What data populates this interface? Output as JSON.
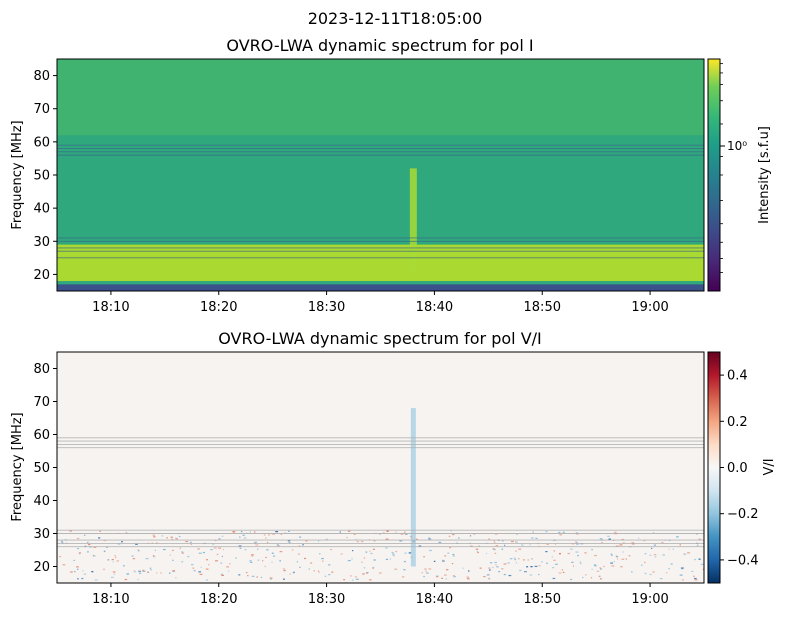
{
  "figure": {
    "suptitle": "2023-12-11T18:05:00"
  },
  "chart_data": [
    {
      "type": "heatmap",
      "title": "OVRO-LWA dynamic spectrum for pol I",
      "xlabel": "",
      "ylabel": "Frequency [MHz]",
      "x_tick_labels": [
        "18:10",
        "18:20",
        "18:30",
        "18:40",
        "18:50",
        "19:00"
      ],
      "x_range": [
        "18:05",
        "19:05"
      ],
      "y_ticks": [
        20,
        30,
        40,
        50,
        60,
        70,
        80
      ],
      "ylim": [
        15,
        85
      ],
      "colorbar": {
        "label": "Intensity [s.f.u]",
        "scale": "log",
        "major_tick_label": "10⁰",
        "colormap": "viridis"
      },
      "features": {
        "bright_band_MHz": [
          18,
          29
        ],
        "dark_band_MHz": [
          15,
          17
        ],
        "rfi_flagged_lines_MHz": [
          56,
          57,
          58,
          59,
          25,
          27,
          28,
          30,
          31
        ],
        "burst_time": "18:38",
        "burst_freq_MHz": [
          20,
          52
        ]
      },
      "colors": {
        "background": "#2fa87e",
        "low_band": "#b8de29",
        "floor": "#3b518b"
      }
    },
    {
      "type": "heatmap",
      "title": "OVRO-LWA dynamic spectrum for pol V/I",
      "xlabel": "",
      "ylabel": "Frequency [MHz]",
      "x_tick_labels": [
        "18:10",
        "18:20",
        "18:30",
        "18:40",
        "18:50",
        "19:00"
      ],
      "x_range": [
        "18:05",
        "19:05"
      ],
      "y_ticks": [
        20,
        30,
        40,
        50,
        60,
        70,
        80
      ],
      "ylim": [
        15,
        85
      ],
      "colorbar": {
        "label": "V/I",
        "scale": "linear",
        "range": [
          -0.5,
          0.5
        ],
        "ticks": [
          -0.4,
          -0.2,
          0.0,
          0.2,
          0.4
        ],
        "tick_labels": [
          "−0.4",
          "−0.2",
          "0.0",
          "0.2",
          "0.4"
        ],
        "colormap": "RdBu_r"
      },
      "features": {
        "noisy_band_MHz": [
          16,
          31
        ],
        "rfi_flagged_lines_MHz": [
          56,
          57,
          58,
          59,
          26,
          27,
          28,
          30,
          31
        ],
        "burst_time": "18:38",
        "burst_freq_MHz": [
          20,
          68
        ]
      }
    }
  ]
}
